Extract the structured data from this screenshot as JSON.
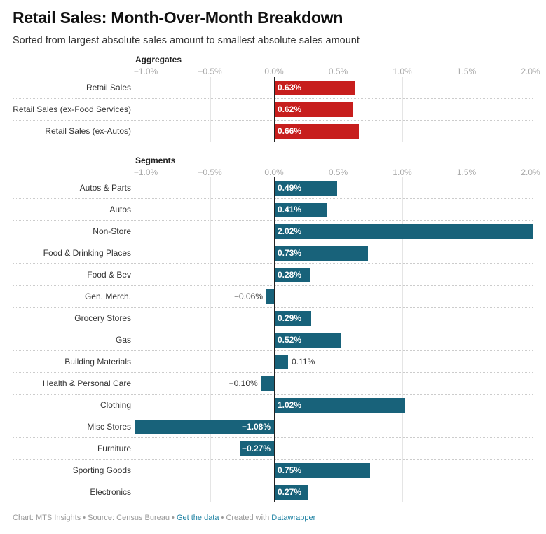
{
  "header": {
    "title": "Retail Sales: Month-Over-Month Breakdown",
    "subtitle": "Sorted from largest absolute sales amount to smallest absolute sales amount"
  },
  "colors": {
    "aggregates_bar": "#c71e1d",
    "segments_bar": "#18627a",
    "link": "#1d81a2"
  },
  "chart_data": [
    {
      "type": "bar",
      "orientation": "horizontal",
      "title": "Aggregates",
      "categories": [
        "Retail Sales",
        "Retail Sales (ex-Food Services)",
        "Retail Sales (ex-Autos)"
      ],
      "values": [
        0.63,
        0.62,
        0.66
      ],
      "value_labels": [
        "0.63%",
        "0.62%",
        "0.66%"
      ],
      "xlim": [
        -1.0,
        2.02
      ],
      "xticks": [
        -1.0,
        -0.5,
        0.0,
        0.5,
        1.0,
        1.5,
        2.0
      ],
      "xtick_labels": [
        "−1.0%",
        "−0.5%",
        "0.0%",
        "0.5%",
        "1.0%",
        "1.5%",
        "2.0%"
      ],
      "grid": true,
      "unit": "%"
    },
    {
      "type": "bar",
      "orientation": "horizontal",
      "title": "Segments",
      "categories": [
        "Autos & Parts",
        "Autos",
        "Non-Store",
        "Food & Drinking Places",
        "Food & Bev",
        "Gen. Merch.",
        "Grocery Stores",
        "Gas",
        "Building Materials",
        "Health & Personal Care",
        "Clothing",
        "Misc Stores",
        "Furniture",
        "Sporting Goods",
        "Electronics"
      ],
      "values": [
        0.49,
        0.41,
        2.02,
        0.73,
        0.28,
        -0.06,
        0.29,
        0.52,
        0.11,
        -0.1,
        1.02,
        -1.08,
        -0.27,
        0.75,
        0.27
      ],
      "value_labels": [
        "0.49%",
        "0.41%",
        "2.02%",
        "0.73%",
        "0.28%",
        "−0.06%",
        "0.29%",
        "0.52%",
        "0.11%",
        "−0.10%",
        "1.02%",
        "−1.08%",
        "−0.27%",
        "0.75%",
        "0.27%"
      ],
      "xlim": [
        -1.0,
        2.02
      ],
      "xticks": [
        -1.0,
        -0.5,
        0.0,
        0.5,
        1.0,
        1.5,
        2.0
      ],
      "xtick_labels": [
        "−1.0%",
        "−0.5%",
        "0.0%",
        "0.5%",
        "1.0%",
        "1.5%",
        "2.0%"
      ],
      "grid": true,
      "unit": "%"
    }
  ],
  "footer": {
    "chart_credit": "Chart: MTS Insights",
    "source": "Source: Census Bureau",
    "get_data_link": "Get the data",
    "created_with": "Created with",
    "datawrapper_link": "Datawrapper",
    "separator": " • "
  }
}
